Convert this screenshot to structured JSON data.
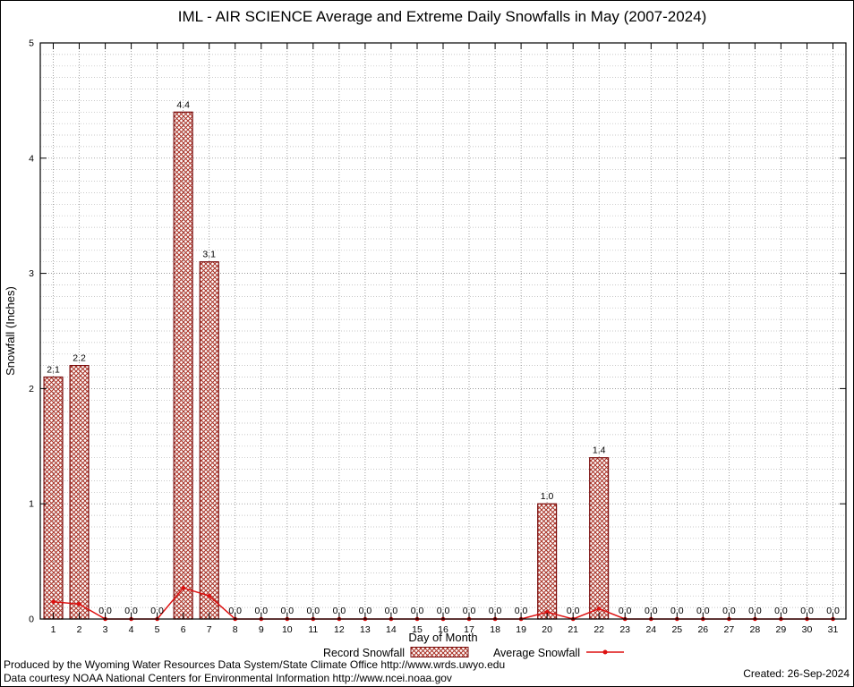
{
  "title": "IML - AIR SCIENCE Average and Extreme Daily Snowfalls in May (2007-2024)",
  "footer": {
    "line1": "Produced by the Wyoming Water Resources Data System/State Climate Office http://www.wrds.uwyo.edu",
    "line2": "Data courtesy NOAA National Centers for Environmental Information http://www.ncei.noaa.gov",
    "created": "Created: 26-Sep-2024"
  },
  "colors": {
    "bar_hatch": "#a93226",
    "bar_edge": "#7a0c0c",
    "line": "#dd1111",
    "grid_major": "#787878",
    "grid_minor": "#b5b5b5",
    "axis": "#000000"
  },
  "chart_data": {
    "type": "bar",
    "title": "IML - AIR SCIENCE Average and Extreme Daily Snowfalls in May (2007-2024)",
    "xlabel": "Day of Month",
    "ylabel": "Snowfall (Inches)",
    "ylim": [
      0,
      5
    ],
    "yticks": [
      0,
      1,
      2,
      3,
      4,
      5
    ],
    "grid": true,
    "legend_position": "bottom",
    "categories": [
      1,
      2,
      3,
      4,
      5,
      6,
      7,
      8,
      9,
      10,
      11,
      12,
      13,
      14,
      15,
      16,
      17,
      18,
      19,
      20,
      21,
      22,
      23,
      24,
      25,
      26,
      27,
      28,
      29,
      30,
      31
    ],
    "series": [
      {
        "name": "Record Snowfall",
        "type": "bar",
        "values": [
          2.1,
          2.2,
          0.0,
          0.0,
          0.0,
          4.4,
          3.1,
          0.0,
          0.0,
          0.0,
          0.0,
          0.0,
          0.0,
          0.0,
          0.0,
          0.0,
          0.0,
          0.0,
          0.0,
          1.0,
          0.0,
          1.4,
          0.0,
          0.0,
          0.0,
          0.0,
          0.0,
          0.0,
          0.0,
          0.0,
          0.0
        ]
      },
      {
        "name": "Average Snowfall",
        "type": "line",
        "values": [
          0.15,
          0.13,
          0.0,
          0.0,
          0.0,
          0.27,
          0.2,
          0.0,
          0.0,
          0.0,
          0.0,
          0.0,
          0.0,
          0.0,
          0.0,
          0.0,
          0.0,
          0.0,
          0.0,
          0.06,
          0.0,
          0.09,
          0.0,
          0.0,
          0.0,
          0.0,
          0.0,
          0.0,
          0.0,
          0.0,
          0.0
        ]
      }
    ],
    "value_labels": [
      "2.1",
      "2.2",
      "0.0",
      "0.0",
      "0.0",
      "4.4",
      "3.1",
      "0.0",
      "0.0",
      "0.0",
      "0.0",
      "0.0",
      "0.0",
      "0.0",
      "0.0",
      "0.0",
      "0.0",
      "0.0",
      "0.0",
      "1.0",
      "0.0",
      "1.4",
      "0.0",
      "0.0",
      "0.0",
      "0.0",
      "0.0",
      "0.0",
      "0.0",
      "0.0",
      "0.0"
    ]
  }
}
